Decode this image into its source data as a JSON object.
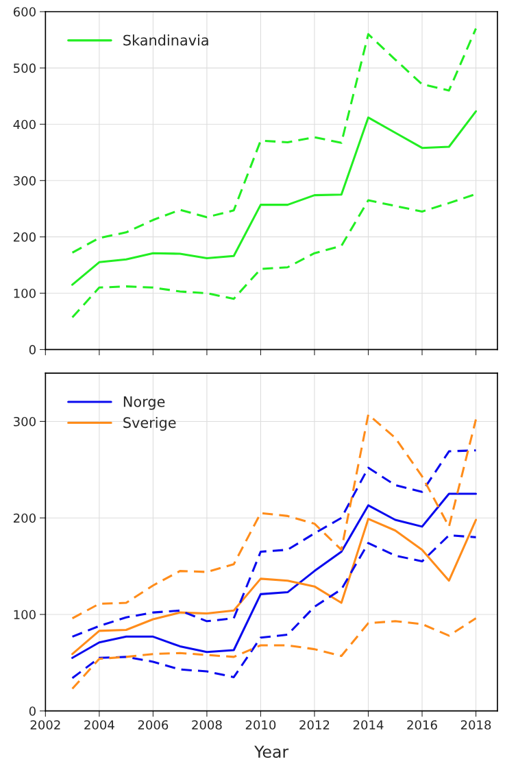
{
  "chart_data": [
    {
      "type": "line",
      "x": [
        2003,
        2004,
        2005,
        2006,
        2007,
        2008,
        2009,
        2010,
        2011,
        2012,
        2013,
        2014,
        2015,
        2016,
        2017,
        2018
      ],
      "series": [
        {
          "name": "Skandinavia",
          "color": "#22ee22",
          "line_style": "solid",
          "values": [
            115,
            155,
            160,
            171,
            170,
            162,
            166,
            257,
            257,
            274,
            275,
            412,
            385,
            358,
            360,
            423
          ]
        },
        {
          "color": "#22ee22",
          "line_style": "dashed",
          "values": [
            172,
            198,
            208,
            230,
            248,
            235,
            247,
            371,
            368,
            377,
            367,
            560,
            515,
            471,
            460,
            570
          ]
        },
        {
          "color": "#22ee22",
          "line_style": "dashed",
          "values": [
            57,
            110,
            112,
            110,
            103,
            100,
            90,
            143,
            146,
            171,
            184,
            265,
            255,
            245,
            260,
            276
          ]
        }
      ],
      "xlim": [
        2002,
        2018.8
      ],
      "xticks": [
        2002,
        2004,
        2006,
        2008,
        2010,
        2012,
        2014,
        2016,
        2018
      ],
      "ylim": [
        0,
        600
      ],
      "yticks": [
        0,
        100,
        200,
        300,
        400,
        500,
        600
      ],
      "tick_labels": "y",
      "grid": true,
      "legend": "top left",
      "marker": "none"
    },
    {
      "type": "line",
      "x": [
        2003,
        2004,
        2005,
        2006,
        2007,
        2008,
        2009,
        2010,
        2011,
        2012,
        2013,
        2014,
        2015,
        2016,
        2017,
        2018
      ],
      "xlabel": "Year",
      "series": [
        {
          "name": "Norge",
          "color": "#0a0aee",
          "line_style": "solid",
          "values": [
            55,
            71,
            77,
            77,
            67,
            61,
            63,
            121,
            123,
            145,
            165,
            213,
            198,
            191,
            225,
            225
          ]
        },
        {
          "name": "Sverige",
          "color": "#ff8c1a",
          "line_style": "solid",
          "values": [
            59,
            83,
            84,
            95,
            102,
            101,
            104,
            137,
            135,
            129,
            112,
            199,
            187,
            167,
            135,
            198
          ]
        },
        {
          "color": "#0a0aee",
          "line_style": "dashed",
          "values": [
            77,
            88,
            97,
            102,
            104,
            93,
            96,
            165,
            167,
            184,
            200,
            252,
            234,
            227,
            269,
            270
          ]
        },
        {
          "color": "#0a0aee",
          "line_style": "dashed",
          "values": [
            34,
            55,
            56,
            51,
            43,
            41,
            35,
            76,
            79,
            108,
            126,
            174,
            161,
            155,
            182,
            180
          ]
        },
        {
          "color": "#ff8c1a",
          "line_style": "dashed",
          "values": [
            96,
            111,
            112,
            130,
            145,
            144,
            152,
            205,
            202,
            194,
            167,
            307,
            283,
            243,
            191,
            302
          ]
        },
        {
          "color": "#ff8c1a",
          "line_style": "dashed",
          "values": [
            23,
            54,
            56,
            59,
            60,
            58,
            56,
            68,
            68,
            64,
            57,
            91,
            93,
            90,
            78,
            96
          ]
        }
      ],
      "xlim": [
        2002,
        2018.8
      ],
      "xticks": [
        2002,
        2004,
        2006,
        2008,
        2010,
        2012,
        2014,
        2016,
        2018
      ],
      "ylim": [
        0,
        350
      ],
      "yticks": [
        0,
        100,
        200,
        300
      ],
      "grid": true,
      "legend": "top left",
      "marker": "none"
    }
  ]
}
